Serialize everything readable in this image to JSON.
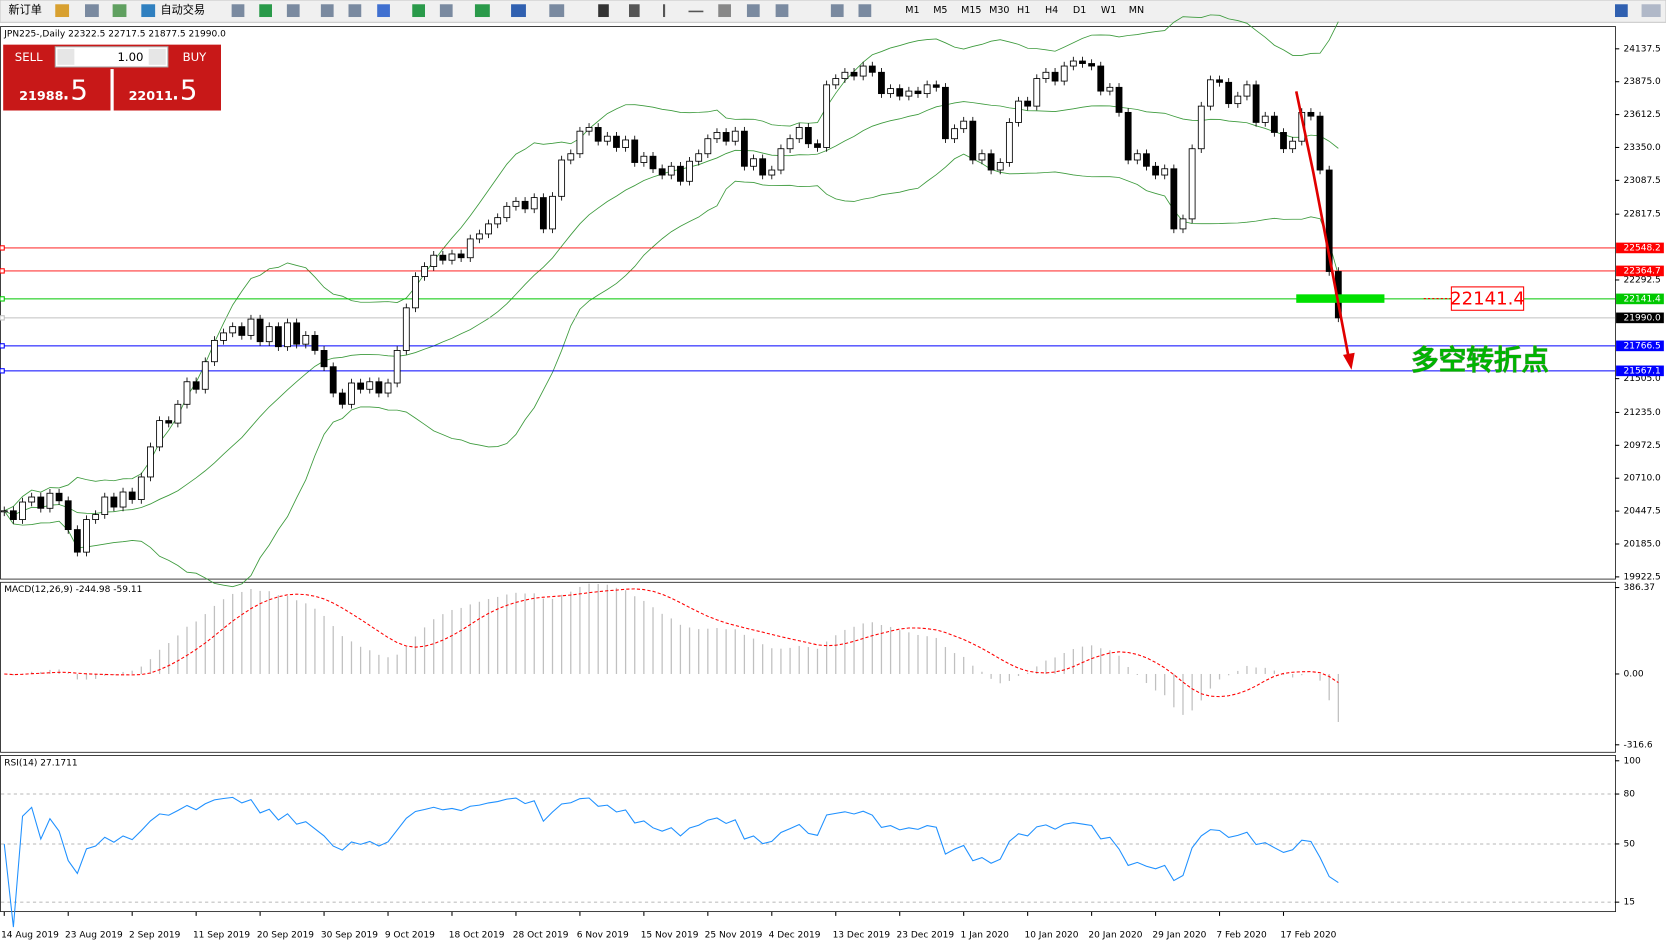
{
  "toolbar": {
    "new_order": "新订单",
    "auto_trade": "自动交易",
    "timeframes": [
      "M1",
      "M5",
      "M15",
      "M30",
      "H1",
      "H4",
      "D1",
      "W1",
      "MN"
    ]
  },
  "trade_panel": {
    "sell": "SELL",
    "buy": "BUY",
    "lots": "1.00",
    "bid": "21988",
    "bid_frac": ".5",
    "ask": "22011",
    "ask_frac": ".5"
  },
  "chart_data": {
    "type": "candlestick",
    "header": "JPN225-,Daily  22322.5 22717.5 21877.5 21990.0",
    "ylim": [
      19905,
      24315
    ],
    "yticks": [
      24137.5,
      {
        "value": 23875,
        "label": "23875.0"
      },
      23612.5,
      {
        "value": 23350,
        "label": "23350.0"
      },
      23087.5,
      22817.5,
      22292.5,
      {
        "value": 21505,
        "label": "21505.0"
      },
      {
        "value": 21235,
        "label": "21235.0"
      },
      20972.5,
      {
        "value": 20710,
        "label": "20710.0"
      },
      20447.5,
      {
        "value": 20185,
        "label": "20185.0"
      },
      19922.5
    ],
    "dates": [
      "14 Aug 2019",
      "23 Aug 2019",
      "2 Sep 2019",
      "11 Sep 2019",
      "20 Sep 2019",
      "30 Sep 2019",
      "9 Oct 2019",
      "18 Oct 2019",
      "28 Oct 2019",
      "6 Nov 2019",
      "15 Nov 2019",
      "25 Nov 2019",
      "4 Dec 2019",
      "13 Dec 2019",
      "23 Dec 2019",
      "1 Jan 2020",
      "10 Jan 2020",
      "20 Jan 2020",
      "29 Jan 2020",
      "7 Feb 2020",
      "17 Feb 2020"
    ],
    "close": [
      20450,
      20380,
      20520,
      20560,
      20470,
      20590,
      20530,
      20300,
      20120,
      20380,
      20420,
      20560,
      20480,
      20600,
      20540,
      20720,
      20960,
      21170,
      21150,
      21300,
      21480,
      21420,
      21640,
      21810,
      21870,
      21920,
      21850,
      21980,
      21800,
      21920,
      21760,
      21950,
      21780,
      21850,
      21730,
      21600,
      21390,
      21300,
      21470,
      21420,
      21480,
      21390,
      21470,
      21730,
      22070,
      22320,
      22400,
      22490,
      22450,
      22500,
      22470,
      22620,
      22660,
      22740,
      22790,
      22880,
      22920,
      22860,
      22950,
      22700,
      22960,
      23250,
      23300,
      23480,
      23510,
      23400,
      23440,
      23350,
      23410,
      23230,
      23280,
      23180,
      23130,
      23200,
      23080,
      23240,
      23300,
      23420,
      23470,
      23400,
      23480,
      23200,
      23260,
      23130,
      23170,
      23340,
      23420,
      23510,
      23380,
      23350,
      23850,
      23900,
      23950,
      23920,
      24000,
      23950,
      23780,
      23820,
      23760,
      23800,
      23780,
      23850,
      23830,
      23420,
      23500,
      23560,
      23250,
      23300,
      23170,
      23230,
      23550,
      23720,
      23680,
      23900,
      23950,
      23880,
      24000,
      24040,
      24020,
      24000,
      23800,
      23830,
      23630,
      23250,
      23300,
      23200,
      23130,
      23180,
      22700,
      22780,
      23340,
      23680,
      23890,
      23870,
      23700,
      23760,
      23850,
      23550,
      23600,
      23470,
      23340,
      23400,
      23630,
      23600,
      23170,
      22360,
      21990
    ],
    "band_color": "#3c9a3c",
    "levels": [
      {
        "value": 22548.2,
        "color": "#ff0000"
      },
      {
        "value": 22364.7,
        "color": "#ff0000"
      },
      {
        "value": 22141.4,
        "color": "#00c800"
      },
      {
        "value": 21990,
        "label": "21990.0",
        "color": "#c0c0c0"
      },
      {
        "value": 21766.5,
        "color": "#0000ff"
      },
      {
        "value": 21567.1,
        "color": "#0000ff"
      }
    ],
    "annotations": [
      {
        "text": "22141.4",
        "color": "#ff0000"
      },
      {
        "text": "多空转折点",
        "color": "#00b400"
      }
    ],
    "macd": {
      "label": "MACD(12,26,9) -244.98 -59.11",
      "ylim": [
        -350,
        410
      ],
      "yticks": [
        386.37,
        {
          "value": 0,
          "label": "0.00"
        },
        -316.6
      ],
      "color": "#c0c0c0",
      "signal_color": "#ff0000"
    },
    "rsi": {
      "label": "RSI(14) 27.1711",
      "ylim": [
        9.3,
        103.2
      ],
      "yticks": [
        100,
        80,
        50,
        15
      ],
      "levels": [
        80,
        50,
        15
      ],
      "color": "#1e90ff"
    }
  }
}
